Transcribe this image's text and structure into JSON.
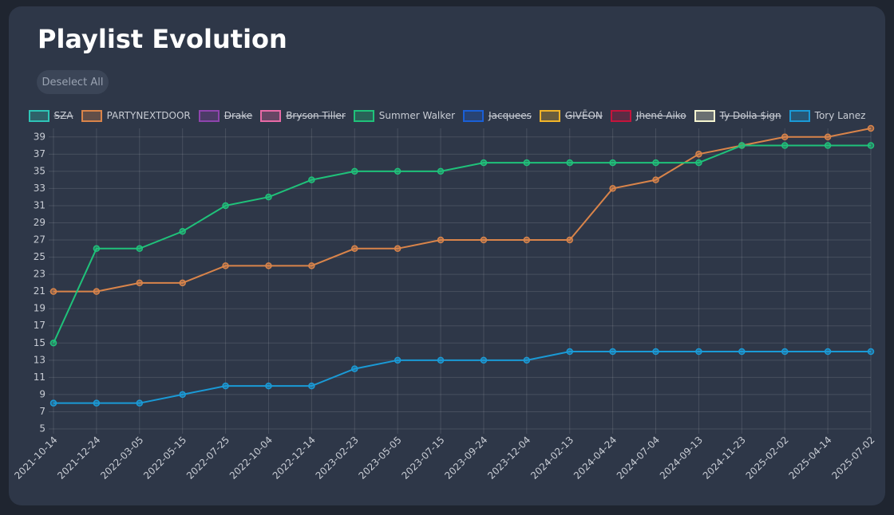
{
  "chart_data": {
    "type": "line",
    "title": "Playlist Evolution",
    "button": "Deselect All",
    "categories": [
      "2021-10-14",
      "2021-12-24",
      "2022-03-05",
      "2022-05-15",
      "2022-07-25",
      "2022-10-04",
      "2022-12-14",
      "2023-02-23",
      "2023-05-05",
      "2023-07-15",
      "2023-09-24",
      "2023-12-04",
      "2024-02-13",
      "2024-04-24",
      "2024-07-04",
      "2024-09-13",
      "2024-11-23",
      "2025-02-02",
      "2025-04-14",
      "2025-07-02"
    ],
    "series": [
      {
        "name": "SZA",
        "color": "#2ec4b6",
        "hidden": true
      },
      {
        "name": "PARTYNEXTDOOR",
        "color": "#d9844a",
        "values": [
          21,
          21,
          22,
          22,
          24,
          24,
          24,
          26,
          26,
          27,
          27,
          27,
          27,
          33,
          34,
          37,
          38,
          39,
          39,
          40
        ]
      },
      {
        "name": "Drake",
        "color": "#8e44ad",
        "hidden": true
      },
      {
        "name": "Bryson Tiller",
        "color": "#e86aa6",
        "hidden": true
      },
      {
        "name": "Summer Walker",
        "color": "#1fc27a",
        "values": [
          15,
          26,
          26,
          28,
          31,
          32,
          34,
          35,
          35,
          35,
          36,
          36,
          36,
          36,
          36,
          36,
          38,
          38,
          38,
          38
        ]
      },
      {
        "name": "Jacquees",
        "color": "#1a5fd6",
        "hidden": true
      },
      {
        "name": "GIVĒON",
        "color": "#f0b429",
        "hidden": true
      },
      {
        "name": "Jhené Aiko",
        "color": "#c4143c",
        "hidden": true
      },
      {
        "name": "Ty Dolla $ign",
        "color": "#f4f4d0",
        "hidden": true
      },
      {
        "name": "Tory Lanez",
        "color": "#1a9ad6",
        "values": [
          8,
          8,
          8,
          9,
          10,
          10,
          10,
          12,
          13,
          13,
          13,
          13,
          14,
          14,
          14,
          14,
          14,
          14,
          14,
          14
        ]
      }
    ],
    "ylim": [
      5,
      40
    ],
    "yticks": [
      5,
      7,
      9,
      11,
      13,
      15,
      17,
      19,
      21,
      23,
      25,
      27,
      29,
      31,
      33,
      35,
      37,
      39
    ],
    "grid": true
  }
}
